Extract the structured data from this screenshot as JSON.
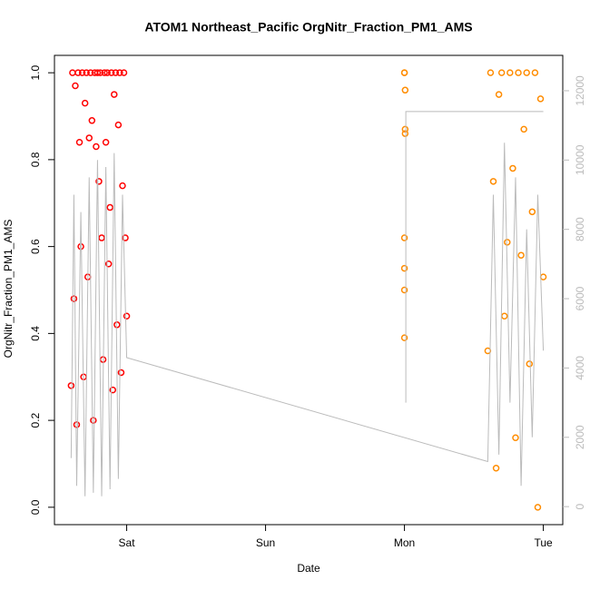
{
  "chart_data": {
    "type": "scatter",
    "title": "ATOM1 Northeast_Pacific OrgNitr_Fraction_PM1_AMS",
    "xlabel": "Date",
    "ylabel": "OrgNitr_Fraction_PM1_AMS",
    "xlim": [
      -0.52,
      3.14
    ],
    "ylim": [
      -0.04,
      1.04
    ],
    "y2lim": [
      -520,
      13020
    ],
    "xticks": [
      {
        "value": 0,
        "label": "Sat"
      },
      {
        "value": 1,
        "label": "Sun"
      },
      {
        "value": 2,
        "label": "Mon"
      },
      {
        "value": 3,
        "label": "Tue"
      }
    ],
    "yticks": [
      {
        "value": 0,
        "label": "0.0"
      },
      {
        "value": 0.2,
        "label": "0.2"
      },
      {
        "value": 0.4,
        "label": "0.4"
      },
      {
        "value": 0.6,
        "label": "0.6"
      },
      {
        "value": 0.8,
        "label": "0.8"
      },
      {
        "value": 1,
        "label": "1.0"
      }
    ],
    "y2ticks": [
      0,
      2000,
      4000,
      6000,
      8000,
      10000,
      12000
    ],
    "y2color": "#bbbbbb",
    "series": [
      {
        "color": "#ff0000",
        "style": "points",
        "x": [
          -0.4,
          -0.39,
          -0.38,
          -0.37,
          -0.36,
          -0.35,
          -0.34,
          -0.33,
          -0.32,
          -0.31,
          -0.3,
          -0.29,
          -0.28,
          -0.27,
          -0.26,
          -0.25,
          -0.24,
          -0.23,
          -0.22,
          -0.21,
          -0.2,
          -0.19,
          -0.18,
          -0.17,
          -0.16,
          -0.15,
          -0.14,
          -0.13,
          -0.12,
          -0.11,
          -0.1,
          -0.09,
          -0.08,
          -0.07,
          -0.06,
          -0.05,
          -0.04,
          -0.03,
          -0.02,
          -0.01,
          0.0
        ],
        "values": [
          0.28,
          1,
          0.48,
          0.97,
          0.19,
          1,
          0.84,
          0.6,
          1,
          0.3,
          0.93,
          1,
          0.53,
          0.85,
          1,
          0.89,
          0.2,
          1,
          0.83,
          1,
          0.75,
          1,
          0.62,
          0.34,
          1,
          0.84,
          1,
          0.56,
          0.69,
          1,
          0.27,
          0.95,
          1,
          0.42,
          0.88,
          1,
          0.31,
          0.74,
          1,
          0.62,
          0.44
        ]
      },
      {
        "color": "#ff8c00",
        "style": "points",
        "x": [
          2.0,
          2.0,
          2.005,
          2.005,
          2.005,
          2.0,
          2.0,
          2.0,
          2.0,
          2.6,
          2.62,
          2.64,
          2.66,
          2.68,
          2.7,
          2.72,
          2.74,
          2.76,
          2.78,
          2.8,
          2.82,
          2.84,
          2.86,
          2.88,
          2.9,
          2.92,
          2.94,
          2.96,
          2.98,
          3.0
        ],
        "values": [
          1,
          1,
          0.96,
          0.87,
          0.86,
          0.62,
          0.55,
          0.5,
          0.39,
          0.36,
          1,
          0.75,
          0.09,
          0.95,
          1,
          0.44,
          0.61,
          1,
          0.78,
          0.16,
          1,
          0.58,
          0.87,
          1,
          0.33,
          0.68,
          1,
          0,
          0.94,
          0.53
        ]
      },
      {
        "color": "#bbbbbb",
        "style": "line",
        "axis": "y2",
        "x": [
          -0.4,
          -0.38,
          -0.36,
          -0.33,
          -0.3,
          -0.27,
          -0.24,
          -0.21,
          -0.18,
          -0.15,
          -0.12,
          -0.09,
          -0.06,
          -0.03,
          0.0,
          2.6,
          2.64,
          2.68,
          2.72,
          2.76,
          2.8,
          2.84,
          2.88,
          2.92,
          2.96,
          3.0,
          3.0,
          2.01,
          2.01,
          3.0
        ],
        "values": [
          1400,
          9000,
          600,
          8500,
          300,
          9500,
          400,
          10000,
          300,
          9800,
          500,
          10200,
          800,
          9000,
          4300,
          1300,
          9000,
          1500,
          10500,
          3000,
          9500,
          600,
          8000,
          2000,
          9000,
          4500,
          null,
          3000,
          11400,
          11400
        ]
      }
    ]
  }
}
